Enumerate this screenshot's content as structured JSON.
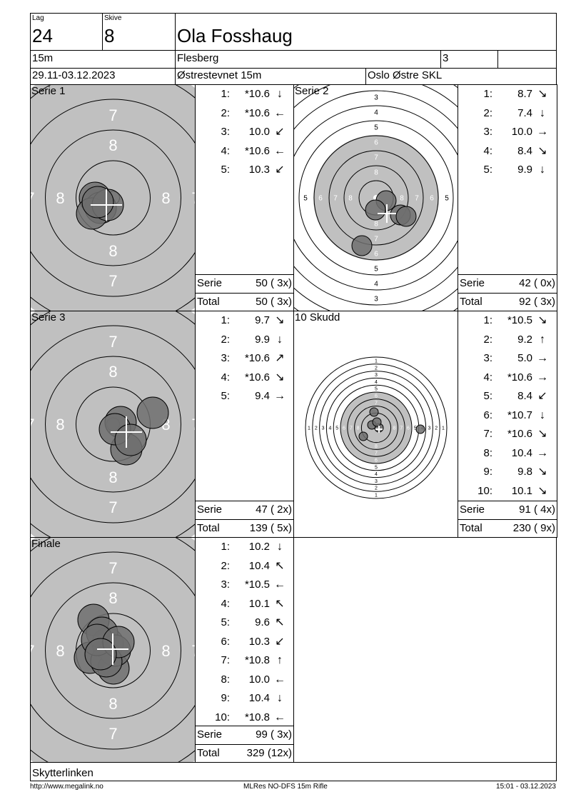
{
  "header": {
    "lag_label": "Lag",
    "lag": "24",
    "skive_label": "Skive",
    "skive": "8",
    "name": "Ola Fosshaug",
    "distance": "15m",
    "club": "Flesberg",
    "class": "3",
    "extra": "",
    "dates": "29.11-03.12.2023",
    "event": "Østrestevnet 15m",
    "organizer": "Oslo Østre SKL"
  },
  "ring_numbers": [
    "1",
    "2",
    "3",
    "4",
    "5",
    "6",
    "7",
    "8"
  ],
  "series": [
    {
      "title": "Serie 1",
      "shots": [
        {
          "n": "1:",
          "v": "*10.6",
          "d": "↓"
        },
        {
          "n": "2:",
          "v": "*10.6",
          "d": "←"
        },
        {
          "n": "3:",
          "v": "10.0",
          "d": "↙"
        },
        {
          "n": "4:",
          "v": "*10.6",
          "d": "←"
        },
        {
          "n": "5:",
          "v": "10.3",
          "d": "↙"
        }
      ],
      "serie_label": "Serie",
      "serie": "50 ( 3x)",
      "total_label": "Total",
      "total": "50 ( 3x)"
    },
    {
      "title": "Serie 2",
      "shots": [
        {
          "n": "1:",
          "v": "8.7",
          "d": "↘"
        },
        {
          "n": "2:",
          "v": "7.4",
          "d": "↓"
        },
        {
          "n": "3:",
          "v": "10.0",
          "d": "→"
        },
        {
          "n": "4:",
          "v": "8.4",
          "d": "↘"
        },
        {
          "n": "5:",
          "v": "9.9",
          "d": "↓"
        }
      ],
      "serie_label": "Serie",
      "serie": "42 ( 0x)",
      "total_label": "Total",
      "total": "92 ( 3x)"
    },
    {
      "title": "Serie 3",
      "shots": [
        {
          "n": "1:",
          "v": "9.7",
          "d": "↘"
        },
        {
          "n": "2:",
          "v": "9.9",
          "d": "↓"
        },
        {
          "n": "3:",
          "v": "*10.6",
          "d": "↗"
        },
        {
          "n": "4:",
          "v": "*10.6",
          "d": "↘"
        },
        {
          "n": "5:",
          "v": "9.4",
          "d": "→"
        }
      ],
      "serie_label": "Serie",
      "serie": "47 ( 2x)",
      "total_label": "Total",
      "total": "139 ( 5x)"
    },
    {
      "title": "10 Skudd",
      "shots": [
        {
          "n": "1:",
          "v": "*10.5",
          "d": "↘"
        },
        {
          "n": "2:",
          "v": "9.2",
          "d": "↑"
        },
        {
          "n": "3:",
          "v": "5.0",
          "d": "→"
        },
        {
          "n": "4:",
          "v": "*10.6",
          "d": "→"
        },
        {
          "n": "5:",
          "v": "8.4",
          "d": "↙"
        },
        {
          "n": "6:",
          "v": "*10.7",
          "d": "↓"
        },
        {
          "n": "7:",
          "v": "*10.6",
          "d": "↘"
        },
        {
          "n": "8:",
          "v": "10.4",
          "d": "→"
        },
        {
          "n": "9:",
          "v": "9.8",
          "d": "↘"
        },
        {
          "n": "10:",
          "v": "10.1",
          "d": "↘"
        }
      ],
      "serie_label": "Serie",
      "serie": "91 ( 4x)",
      "total_label": "Total",
      "total": "230 ( 9x)"
    },
    {
      "title": "Finale",
      "shots": [
        {
          "n": "1:",
          "v": "10.2",
          "d": "↓"
        },
        {
          "n": "2:",
          "v": "10.4",
          "d": "↖"
        },
        {
          "n": "3:",
          "v": "*10.5",
          "d": "←"
        },
        {
          "n": "4:",
          "v": "10.1",
          "d": "↖"
        },
        {
          "n": "5:",
          "v": "9.6",
          "d": "↖"
        },
        {
          "n": "6:",
          "v": "10.3",
          "d": "↙"
        },
        {
          "n": "7:",
          "v": "*10.8",
          "d": "↑"
        },
        {
          "n": "8:",
          "v": "10.0",
          "d": "←"
        },
        {
          "n": "9:",
          "v": "10.4",
          "d": "↓"
        },
        {
          "n": "10:",
          "v": "*10.8",
          "d": "←"
        }
      ],
      "serie_label": "Serie",
      "serie": "99 ( 3x)",
      "total_label": "Total",
      "total": "329 (12x)"
    }
  ],
  "bottom_label": "Skytterlinken",
  "footer": {
    "url": "http://www.megalink.no",
    "program": "MLRes NO-DFS 15m Rifle",
    "timestamp": "15:01 - 03.12.2023"
  },
  "colors": {
    "target_grey": "#c0c0c0",
    "shot_fill": "#6e6e6e"
  }
}
